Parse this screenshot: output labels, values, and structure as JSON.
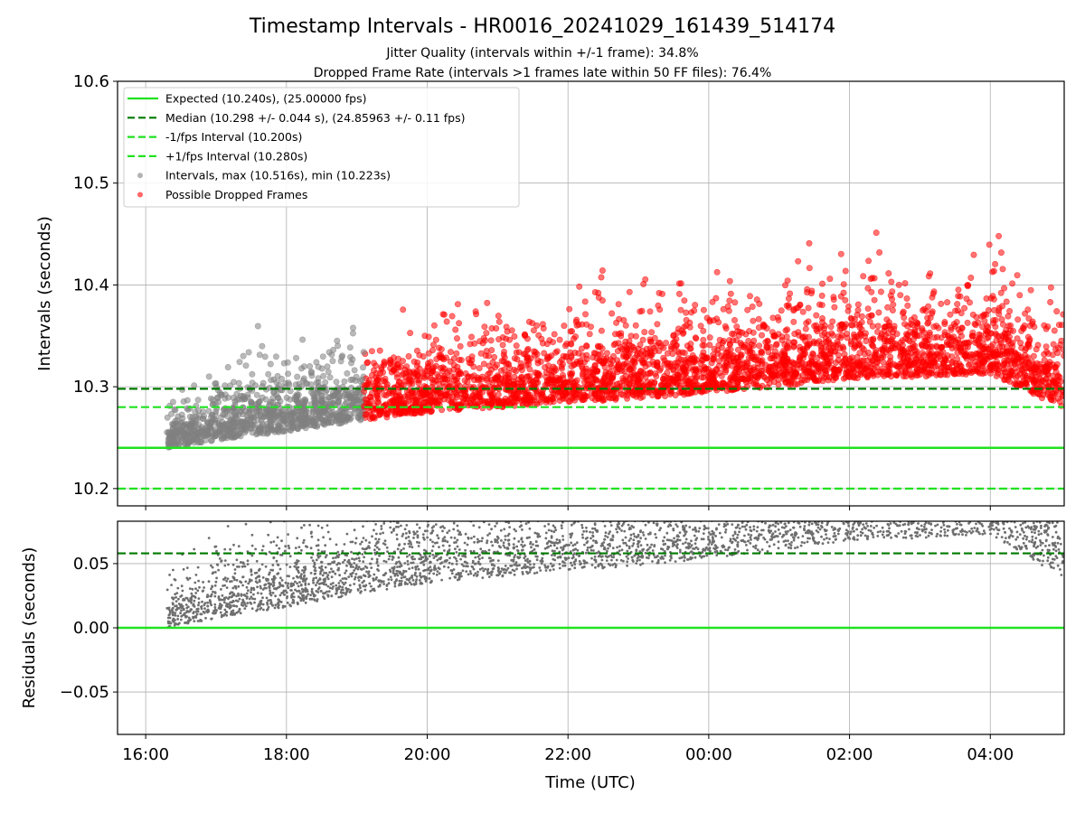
{
  "chart_data": {
    "type": "scatter",
    "title": "Timestamp Intervals - HR0016_20241029_161439_514174",
    "subtitle_lines": [
      "Jitter Quality (intervals within +/-1 frame): 34.8%",
      "Dropped Frame Rate (intervals >1 frames late within 50 FF files): 76.4%"
    ],
    "xlabel": "Time (UTC)",
    "x_tick_labels": [
      "16:00",
      "18:00",
      "20:00",
      "22:00",
      "00:00",
      "02:00",
      "04:00"
    ],
    "x_tick_hours": [
      16,
      18,
      20,
      22,
      24,
      26,
      28
    ],
    "xlim_hours": [
      15.6,
      29.05
    ],
    "grid": true,
    "colors": {
      "expected": "#1fe21f",
      "median": "#007a00",
      "interval_band": "#1fe21f",
      "intervals": "#808080",
      "dropped": "#ff0000",
      "residuals": "#6e6e6e"
    },
    "top_panel": {
      "ylabel": "Intervals (seconds)",
      "ylim": [
        10.183,
        10.6
      ],
      "y_ticks": [
        10.2,
        10.3,
        10.4,
        10.5,
        10.6
      ],
      "y_tick_labels": [
        "10.2",
        "10.3",
        "10.4",
        "10.5",
        "10.6"
      ],
      "expected": 10.24,
      "median": 10.298,
      "minus_interval": 10.2,
      "plus_interval": 10.28,
      "legend_position": "upper-left",
      "legend": [
        {
          "label": "Expected (10.240s), (25.00000 fps)",
          "style": "solid-line",
          "color": "#1fe21f"
        },
        {
          "label": "Median (10.298 +/- 0.044 s), (24.85963 +/- 0.11 fps)",
          "style": "dashed-line",
          "color": "#007a00"
        },
        {
          "label": "-1/fps Interval (10.200s)",
          "style": "dashed-line",
          "color": "#1fe21f"
        },
        {
          "label": "+1/fps Interval (10.280s)",
          "style": "dashed-line",
          "color": "#1fe21f"
        },
        {
          "label": "Intervals, max (10.516s), min (10.223s)",
          "style": "marker",
          "color": "#808080"
        },
        {
          "label": "Possible Dropped Frames",
          "style": "marker",
          "color": "#ff0000"
        }
      ],
      "intervals_max": 10.516,
      "intervals_min": 10.223
    },
    "bottom_panel": {
      "ylabel": "Residuals (seconds)",
      "ylim": [
        -0.083,
        0.083
      ],
      "y_ticks": [
        -0.05,
        0.0,
        0.05
      ],
      "y_tick_labels": [
        "−0.05",
        "0.00",
        "0.05"
      ],
      "zero_line": 0.0,
      "median_residual": 0.058
    },
    "observations": {
      "count_approx": 4200,
      "start_hour": 16.3,
      "dropped_start_hour": 19.1,
      "end_hour": 29.05
    },
    "trend_points": [
      {
        "hour": 16.3,
        "median_interval": 10.245,
        "spread": 0.02
      },
      {
        "hour": 17.0,
        "median_interval": 10.255,
        "spread": 0.03
      },
      {
        "hour": 18.0,
        "median_interval": 10.265,
        "spread": 0.035
      },
      {
        "hour": 19.0,
        "median_interval": 10.275,
        "spread": 0.035
      },
      {
        "hour": 20.0,
        "median_interval": 10.285,
        "spread": 0.04
      },
      {
        "hour": 22.0,
        "median_interval": 10.295,
        "spread": 0.045
      },
      {
        "hour": 24.0,
        "median_interval": 10.305,
        "spread": 0.045
      },
      {
        "hour": 26.0,
        "median_interval": 10.32,
        "spread": 0.05
      },
      {
        "hour": 28.0,
        "median_interval": 10.325,
        "spread": 0.05
      },
      {
        "hour": 29.0,
        "median_interval": 10.29,
        "spread": 0.04
      }
    ]
  }
}
